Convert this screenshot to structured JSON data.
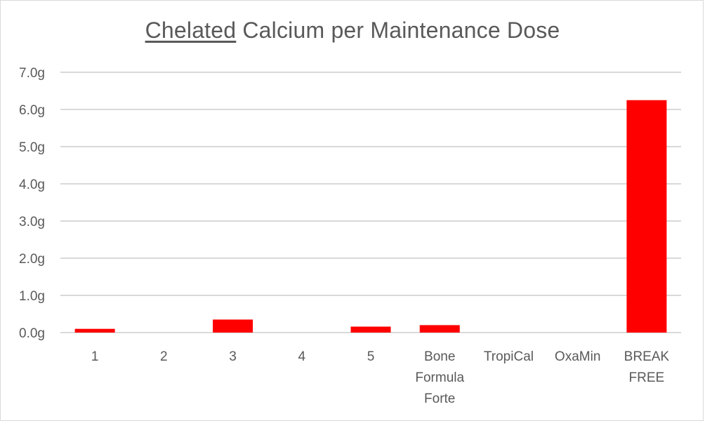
{
  "chart_data": {
    "type": "bar",
    "title_underlined": "Chelated",
    "title_rest": " Calcium per Maintenance Dose",
    "categories": [
      [
        "1"
      ],
      [
        "2"
      ],
      [
        "3"
      ],
      [
        "4"
      ],
      [
        "5"
      ],
      [
        "Bone",
        "Formula",
        "Forte"
      ],
      [
        "TropiCal"
      ],
      [
        "OxaMin"
      ],
      [
        "BREAK",
        "FREE"
      ]
    ],
    "values": [
      0.1,
      0,
      0.35,
      0,
      0.16,
      0.2,
      0,
      0,
      6.25
    ],
    "unit": "g",
    "ylim": [
      0,
      7
    ],
    "y_ticks": [
      "0.0g",
      "1.0g",
      "2.0g",
      "3.0g",
      "4.0g",
      "5.0g",
      "6.0g",
      "7.0g"
    ],
    "grid": true,
    "bar_color": "#ff0000",
    "grid_color": "#d9d9d9"
  }
}
